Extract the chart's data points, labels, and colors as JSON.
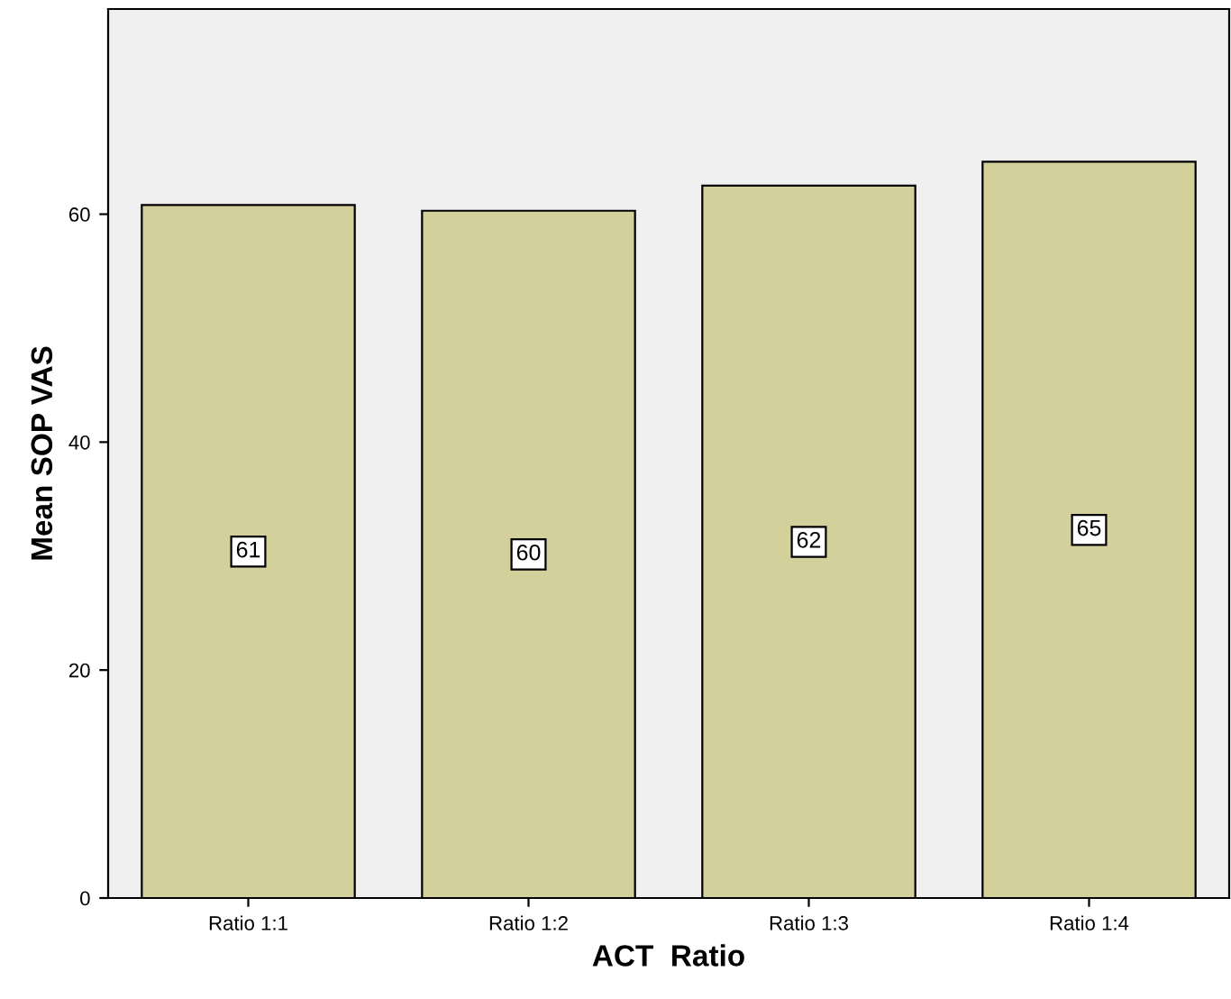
{
  "chart_data": {
    "type": "bar",
    "xlabel": "ACT  Ratio",
    "ylabel": "Mean SOP VAS",
    "categories": [
      "Ratio 1:1",
      "Ratio 1:2",
      "Ratio 1:3",
      "Ratio 1:4"
    ],
    "values": [
      60.8,
      60.3,
      62.5,
      64.6
    ],
    "value_labels": [
      "61",
      "60",
      "62",
      "65"
    ],
    "color": "#d4d09c",
    "ylim": [
      0,
      78
    ],
    "yticks": [
      0,
      20,
      40,
      60
    ],
    "grid": false,
    "legend": false
  }
}
